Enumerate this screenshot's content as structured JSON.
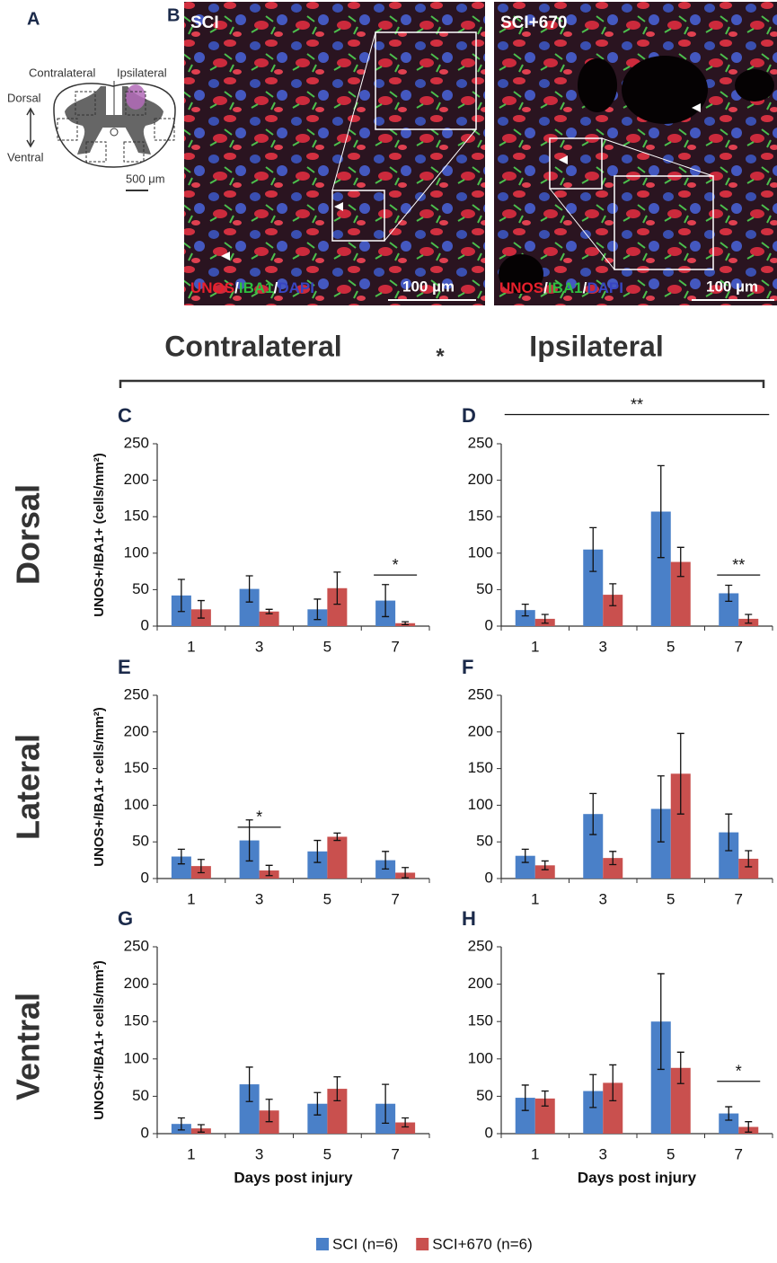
{
  "figure": {
    "panel_a": {
      "label": "A",
      "contralateral": "Contralateral",
      "ipsilateral": "Ipsilateral",
      "dorsal": "Dorsal",
      "ventral": "Ventral",
      "scale": "500 μm"
    },
    "panel_b": {
      "label": "B",
      "images": [
        {
          "title": "SCI",
          "scale": "100 µm"
        },
        {
          "title": "SCI+670",
          "scale": "100 µm"
        }
      ],
      "stain": [
        "UNOS",
        "/",
        "IBA1",
        "/",
        "DAPI"
      ]
    },
    "columns": {
      "left": "Contralateral",
      "right": "Ipsilateral",
      "significance": "*"
    },
    "rows": [
      "Dorsal",
      "Lateral",
      "Ventral"
    ]
  },
  "chart_data": [
    {
      "type": "bar",
      "panel": "C",
      "y_label": "UNOS+/IBA1+ (cells/mm²)",
      "categories": [
        "1",
        "3",
        "5",
        "7"
      ],
      "ylim": [
        0,
        250
      ],
      "yticks": [
        0,
        50,
        100,
        150,
        200,
        250
      ],
      "series": [
        {
          "name": "SCI (n=6)",
          "color": "#4a80c8",
          "values": [
            42,
            51,
            23,
            35
          ],
          "errors": [
            22,
            18,
            14,
            22
          ]
        },
        {
          "name": "SCI+670 (n=6)",
          "color": "#c9504e",
          "values": [
            23,
            20,
            52,
            4
          ],
          "errors": [
            12,
            3,
            22,
            2
          ]
        }
      ],
      "annotations": [
        {
          "text": "*",
          "x": [
            "7"
          ],
          "y": 70
        }
      ]
    },
    {
      "type": "bar",
      "panel": "D",
      "categories": [
        "1",
        "3",
        "5",
        "7"
      ],
      "ylim": [
        0,
        250
      ],
      "yticks": [
        0,
        50,
        100,
        150,
        200,
        250
      ],
      "series": [
        {
          "color": "#4a80c8",
          "values": [
            22,
            105,
            157,
            45
          ],
          "errors": [
            8,
            30,
            63,
            11
          ]
        },
        {
          "color": "#c9504e",
          "values": [
            10,
            43,
            88,
            10
          ],
          "errors": [
            6,
            15,
            20,
            6
          ]
        }
      ],
      "annotations": [
        {
          "text": "**",
          "x": [
            "7"
          ],
          "y": 70
        },
        {
          "text": "**",
          "x": [
            "1",
            "7"
          ],
          "y": 290
        }
      ]
    },
    {
      "type": "bar",
      "panel": "E",
      "y_label": "UNOS+/IBA1+ cells/mm²)",
      "categories": [
        "1",
        "3",
        "5",
        "7"
      ],
      "ylim": [
        0,
        250
      ],
      "yticks": [
        0,
        50,
        100,
        150,
        200,
        250
      ],
      "series": [
        {
          "color": "#4a80c8",
          "values": [
            30,
            52,
            37,
            25
          ],
          "errors": [
            10,
            28,
            15,
            12
          ]
        },
        {
          "color": "#c9504e",
          "values": [
            17,
            11,
            57,
            8
          ],
          "errors": [
            9,
            7,
            5,
            7
          ]
        }
      ],
      "annotations": [
        {
          "text": "*",
          "x": [
            "3"
          ],
          "y": 70
        }
      ]
    },
    {
      "type": "bar",
      "panel": "F",
      "categories": [
        "1",
        "3",
        "5",
        "7"
      ],
      "ylim": [
        0,
        250
      ],
      "yticks": [
        0,
        50,
        100,
        150,
        200,
        250
      ],
      "series": [
        {
          "color": "#4a80c8",
          "values": [
            31,
            88,
            95,
            63
          ],
          "errors": [
            9,
            28,
            45,
            25
          ]
        },
        {
          "color": "#c9504e",
          "values": [
            18,
            28,
            143,
            27
          ],
          "errors": [
            6,
            9,
            55,
            11
          ]
        }
      ]
    },
    {
      "type": "bar",
      "panel": "G",
      "y_label": "UNOS+/IBA1+ cells/mm²)",
      "x_label": "Days post injury",
      "categories": [
        "1",
        "3",
        "5",
        "7"
      ],
      "ylim": [
        0,
        250
      ],
      "yticks": [
        0,
        50,
        100,
        150,
        200,
        250
      ],
      "series": [
        {
          "color": "#4a80c8",
          "values": [
            13,
            66,
            40,
            40
          ],
          "errors": [
            8,
            23,
            15,
            26
          ]
        },
        {
          "color": "#c9504e",
          "values": [
            7,
            31,
            60,
            15
          ],
          "errors": [
            5,
            15,
            16,
            6
          ]
        }
      ]
    },
    {
      "type": "bar",
      "panel": "H",
      "x_label": "Days post injury",
      "categories": [
        "1",
        "3",
        "5",
        "7"
      ],
      "ylim": [
        0,
        250
      ],
      "yticks": [
        0,
        50,
        100,
        150,
        200,
        250
      ],
      "series": [
        {
          "color": "#4a80c8",
          "values": [
            48,
            57,
            150,
            27
          ],
          "errors": [
            17,
            22,
            64,
            9
          ]
        },
        {
          "color": "#c9504e",
          "values": [
            47,
            68,
            88,
            9
          ],
          "errors": [
            10,
            24,
            21,
            7
          ]
        }
      ],
      "annotations": [
        {
          "text": "*",
          "x": [
            "7"
          ],
          "y": 70
        }
      ]
    }
  ]
}
